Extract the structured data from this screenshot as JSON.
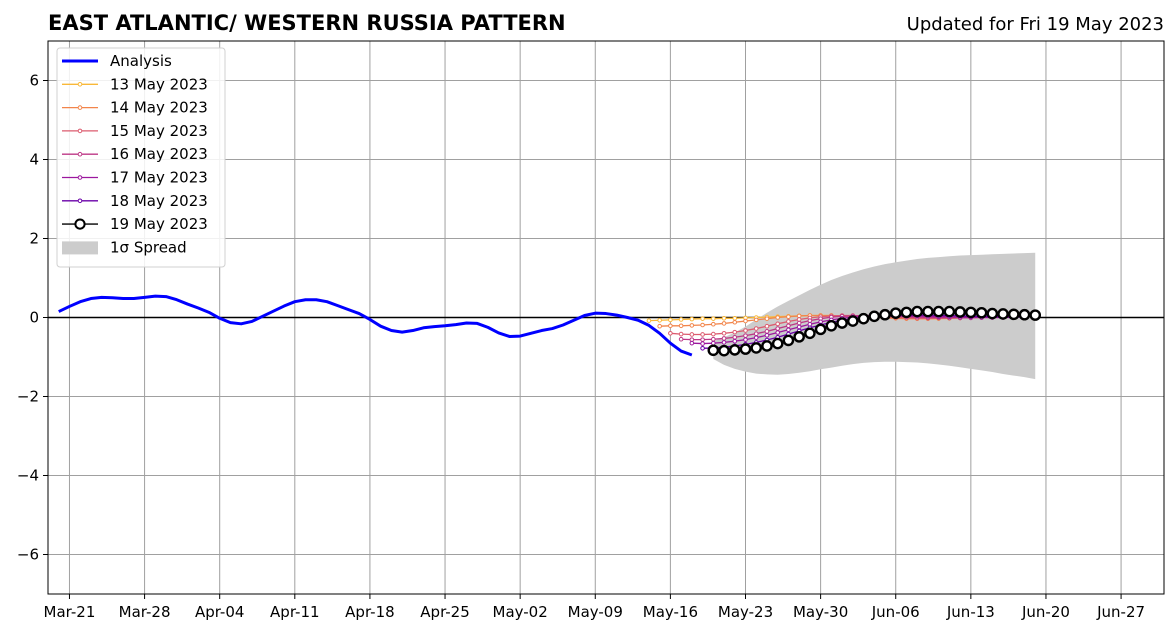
{
  "chart_data": {
    "type": "line",
    "title": "EAST ATLANTIC/ WESTERN RUSSIA PATTERN",
    "subtitle": "Updated for Fri 19 May 2023",
    "xlabel": "",
    "ylabel": "",
    "xlim": [
      "2023-03-19",
      "2023-07-01"
    ],
    "ylim": [
      -7,
      7
    ],
    "grid": true,
    "legend_position": "top-left",
    "x_ticks": [
      {
        "date": "2023-03-21",
        "label": "Mar-21"
      },
      {
        "date": "2023-03-28",
        "label": "Mar-28"
      },
      {
        "date": "2023-04-04",
        "label": "Apr-04"
      },
      {
        "date": "2023-04-11",
        "label": "Apr-11"
      },
      {
        "date": "2023-04-18",
        "label": "Apr-18"
      },
      {
        "date": "2023-04-25",
        "label": "Apr-25"
      },
      {
        "date": "2023-05-02",
        "label": "May-02"
      },
      {
        "date": "2023-05-09",
        "label": "May-09"
      },
      {
        "date": "2023-05-16",
        "label": "May-16"
      },
      {
        "date": "2023-05-23",
        "label": "May-23"
      },
      {
        "date": "2023-05-30",
        "label": "May-30"
      },
      {
        "date": "2023-06-06",
        "label": "Jun-06"
      },
      {
        "date": "2023-06-13",
        "label": "Jun-13"
      },
      {
        "date": "2023-06-20",
        "label": "Jun-20"
      },
      {
        "date": "2023-06-27",
        "label": "Jun-27"
      }
    ],
    "y_ticks": [
      {
        "value": 6,
        "label": "6"
      },
      {
        "value": 4,
        "label": "4"
      },
      {
        "value": 2,
        "label": "2"
      },
      {
        "value": 0,
        "label": "0"
      },
      {
        "value": -2,
        "label": "−2"
      },
      {
        "value": -4,
        "label": "−4"
      },
      {
        "value": -6,
        "label": "−6"
      }
    ],
    "series": [
      {
        "name": "Analysis",
        "color": "#0000ff",
        "style": "thick-line",
        "x": [
          "2023-03-20",
          "2023-03-21",
          "2023-03-22",
          "2023-03-23",
          "2023-03-24",
          "2023-03-25",
          "2023-03-26",
          "2023-03-27",
          "2023-03-28",
          "2023-03-29",
          "2023-03-30",
          "2023-03-31",
          "2023-04-01",
          "2023-04-02",
          "2023-04-03",
          "2023-04-04",
          "2023-04-05",
          "2023-04-06",
          "2023-04-07",
          "2023-04-08",
          "2023-04-09",
          "2023-04-10",
          "2023-04-11",
          "2023-04-12",
          "2023-04-13",
          "2023-04-14",
          "2023-04-15",
          "2023-04-16",
          "2023-04-17",
          "2023-04-18",
          "2023-04-19",
          "2023-04-20",
          "2023-04-21",
          "2023-04-22",
          "2023-04-23",
          "2023-04-24",
          "2023-04-25",
          "2023-04-26",
          "2023-04-27",
          "2023-04-28",
          "2023-04-29",
          "2023-04-30",
          "2023-05-01",
          "2023-05-02",
          "2023-05-03",
          "2023-05-04",
          "2023-05-05",
          "2023-05-06",
          "2023-05-07",
          "2023-05-08",
          "2023-05-09",
          "2023-05-10",
          "2023-05-11",
          "2023-05-12",
          "2023-05-13",
          "2023-05-14",
          "2023-05-15",
          "2023-05-16",
          "2023-05-17",
          "2023-05-18"
        ],
        "values": [
          0.15,
          0.28,
          0.4,
          0.48,
          0.51,
          0.5,
          0.48,
          0.48,
          0.51,
          0.54,
          0.53,
          0.45,
          0.34,
          0.24,
          0.13,
          -0.02,
          -0.13,
          -0.16,
          -0.1,
          0.03,
          0.16,
          0.29,
          0.4,
          0.45,
          0.45,
          0.4,
          0.3,
          0.2,
          0.1,
          -0.05,
          -0.22,
          -0.33,
          -0.37,
          -0.33,
          -0.26,
          -0.23,
          -0.21,
          -0.18,
          -0.14,
          -0.15,
          -0.25,
          -0.39,
          -0.48,
          -0.47,
          -0.4,
          -0.33,
          -0.28,
          -0.19,
          -0.07,
          0.05,
          0.11,
          0.1,
          0.06,
          0.0,
          -0.07,
          -0.2,
          -0.4,
          -0.65,
          -0.85,
          -0.95
        ]
      },
      {
        "name": "13 May 2023",
        "color": "#f9b838",
        "style": "small-markers",
        "x": [
          "2023-05-14",
          "2023-05-15",
          "2023-05-16",
          "2023-05-17",
          "2023-05-18",
          "2023-05-19",
          "2023-05-20",
          "2023-05-21",
          "2023-05-22",
          "2023-05-23",
          "2023-05-24",
          "2023-05-25",
          "2023-05-26",
          "2023-05-27",
          "2023-05-28",
          "2023-05-29",
          "2023-05-30",
          "2023-05-31",
          "2023-06-01",
          "2023-06-02",
          "2023-06-03",
          "2023-06-04",
          "2023-06-05",
          "2023-06-06",
          "2023-06-07",
          "2023-06-08",
          "2023-06-09",
          "2023-06-10",
          "2023-06-11",
          "2023-06-12",
          "2023-06-13"
        ],
        "values": [
          -0.08,
          -0.07,
          -0.06,
          -0.05,
          -0.04,
          -0.03,
          -0.03,
          -0.02,
          -0.02,
          -0.01,
          0.0,
          0.01,
          0.02,
          0.03,
          0.04,
          0.05,
          0.05,
          0.05,
          0.04,
          0.03,
          0.02,
          0.01,
          0.0,
          -0.01,
          -0.02,
          -0.03,
          -0.03,
          -0.03,
          -0.02,
          -0.01,
          0.0
        ]
      },
      {
        "name": "14 May 2023",
        "color": "#f2854b",
        "style": "small-markers",
        "x": [
          "2023-05-15",
          "2023-05-16",
          "2023-05-17",
          "2023-05-18",
          "2023-05-19",
          "2023-05-20",
          "2023-05-21",
          "2023-05-22",
          "2023-05-23",
          "2023-05-24",
          "2023-05-25",
          "2023-05-26",
          "2023-05-27",
          "2023-05-28",
          "2023-05-29",
          "2023-05-30",
          "2023-05-31",
          "2023-06-01",
          "2023-06-02",
          "2023-06-03",
          "2023-06-04",
          "2023-06-05",
          "2023-06-06",
          "2023-06-07",
          "2023-06-08",
          "2023-06-09",
          "2023-06-10",
          "2023-06-11",
          "2023-06-12",
          "2023-06-13",
          "2023-06-14"
        ],
        "values": [
          -0.22,
          -0.21,
          -0.21,
          -0.2,
          -0.19,
          -0.17,
          -0.15,
          -0.12,
          -0.09,
          -0.06,
          -0.03,
          0.0,
          0.02,
          0.04,
          0.05,
          0.05,
          0.05,
          0.04,
          0.03,
          0.02,
          0.0,
          -0.01,
          -0.02,
          -0.03,
          -0.03,
          -0.03,
          -0.02,
          -0.02,
          -0.01,
          0.0,
          0.0
        ]
      },
      {
        "name": "15 May 2023",
        "color": "#dc5b6f",
        "style": "small-markers",
        "x": [
          "2023-05-16",
          "2023-05-17",
          "2023-05-18",
          "2023-05-19",
          "2023-05-20",
          "2023-05-21",
          "2023-05-22",
          "2023-05-23",
          "2023-05-24",
          "2023-05-25",
          "2023-05-26",
          "2023-05-27",
          "2023-05-28",
          "2023-05-29",
          "2023-05-30",
          "2023-05-31",
          "2023-06-01",
          "2023-06-02",
          "2023-06-03",
          "2023-06-04",
          "2023-06-05",
          "2023-06-06",
          "2023-06-07",
          "2023-06-08",
          "2023-06-09",
          "2023-06-10",
          "2023-06-11",
          "2023-06-12",
          "2023-06-13",
          "2023-06-14",
          "2023-06-15"
        ],
        "values": [
          -0.4,
          -0.42,
          -0.43,
          -0.43,
          -0.42,
          -0.4,
          -0.37,
          -0.33,
          -0.28,
          -0.22,
          -0.16,
          -0.1,
          -0.05,
          -0.01,
          0.02,
          0.04,
          0.05,
          0.05,
          0.04,
          0.03,
          0.02,
          0.0,
          -0.01,
          -0.02,
          -0.02,
          -0.02,
          -0.01,
          -0.01,
          0.0,
          0.0,
          0.0
        ]
      },
      {
        "name": "16 May 2023",
        "color": "#bd3786",
        "style": "small-markers",
        "x": [
          "2023-05-17",
          "2023-05-18",
          "2023-05-19",
          "2023-05-20",
          "2023-05-21",
          "2023-05-22",
          "2023-05-23",
          "2023-05-24",
          "2023-05-25",
          "2023-05-26",
          "2023-05-27",
          "2023-05-28",
          "2023-05-29",
          "2023-05-30",
          "2023-05-31",
          "2023-06-01",
          "2023-06-02",
          "2023-06-03",
          "2023-06-04",
          "2023-06-05",
          "2023-06-06",
          "2023-06-07",
          "2023-06-08",
          "2023-06-09",
          "2023-06-10",
          "2023-06-11",
          "2023-06-12",
          "2023-06-13",
          "2023-06-14",
          "2023-06-15",
          "2023-06-16"
        ],
        "values": [
          -0.55,
          -0.56,
          -0.56,
          -0.55,
          -0.53,
          -0.5,
          -0.46,
          -0.41,
          -0.35,
          -0.28,
          -0.21,
          -0.14,
          -0.08,
          -0.03,
          0.01,
          0.03,
          0.04,
          0.05,
          0.05,
          0.04,
          0.03,
          0.02,
          0.01,
          0.0,
          0.0,
          -0.01,
          -0.01,
          -0.01,
          0.0,
          0.0,
          0.0
        ]
      },
      {
        "name": "17 May 2023",
        "color": "#9c179e",
        "style": "small-markers",
        "x": [
          "2023-05-18",
          "2023-05-19",
          "2023-05-20",
          "2023-05-21",
          "2023-05-22",
          "2023-05-23",
          "2023-05-24",
          "2023-05-25",
          "2023-05-26",
          "2023-05-27",
          "2023-05-28",
          "2023-05-29",
          "2023-05-30",
          "2023-05-31",
          "2023-06-01",
          "2023-06-02",
          "2023-06-03",
          "2023-06-04",
          "2023-06-05",
          "2023-06-06",
          "2023-06-07",
          "2023-06-08",
          "2023-06-09",
          "2023-06-10",
          "2023-06-11",
          "2023-06-12",
          "2023-06-13",
          "2023-06-14",
          "2023-06-15",
          "2023-06-16",
          "2023-06-17"
        ],
        "values": [
          -0.65,
          -0.66,
          -0.65,
          -0.63,
          -0.6,
          -0.56,
          -0.51,
          -0.45,
          -0.38,
          -0.31,
          -0.24,
          -0.17,
          -0.11,
          -0.06,
          -0.02,
          0.01,
          0.03,
          0.04,
          0.05,
          0.05,
          0.04,
          0.04,
          0.03,
          0.02,
          0.02,
          0.01,
          0.01,
          0.0,
          0.0,
          0.0,
          0.0
        ]
      },
      {
        "name": "18 May 2023",
        "color": "#6a00a8",
        "style": "small-markers",
        "x": [
          "2023-05-19",
          "2023-05-20",
          "2023-05-21",
          "2023-05-22",
          "2023-05-23",
          "2023-05-24",
          "2023-05-25",
          "2023-05-26",
          "2023-05-27",
          "2023-05-28",
          "2023-05-29",
          "2023-05-30",
          "2023-05-31",
          "2023-06-01",
          "2023-06-02",
          "2023-06-03",
          "2023-06-04",
          "2023-06-05",
          "2023-06-06",
          "2023-06-07",
          "2023-06-08",
          "2023-06-09",
          "2023-06-10",
          "2023-06-11",
          "2023-06-12",
          "2023-06-13",
          "2023-06-14",
          "2023-06-15",
          "2023-06-16",
          "2023-06-17",
          "2023-06-18"
        ],
        "values": [
          -0.78,
          -0.77,
          -0.75,
          -0.72,
          -0.68,
          -0.63,
          -0.57,
          -0.5,
          -0.42,
          -0.34,
          -0.26,
          -0.19,
          -0.12,
          -0.07,
          -0.03,
          0.0,
          0.02,
          0.04,
          0.05,
          0.06,
          0.06,
          0.06,
          0.05,
          0.05,
          0.04,
          0.03,
          0.03,
          0.02,
          0.02,
          0.01,
          0.01
        ]
      },
      {
        "name": "19 May 2023",
        "color": "#000000",
        "style": "open-circles",
        "x": [
          "2023-05-20",
          "2023-05-21",
          "2023-05-22",
          "2023-05-23",
          "2023-05-24",
          "2023-05-25",
          "2023-05-26",
          "2023-05-27",
          "2023-05-28",
          "2023-05-29",
          "2023-05-30",
          "2023-05-31",
          "2023-06-01",
          "2023-06-02",
          "2023-06-03",
          "2023-06-04",
          "2023-06-05",
          "2023-06-06",
          "2023-06-07",
          "2023-06-08",
          "2023-06-09",
          "2023-06-10",
          "2023-06-11",
          "2023-06-12",
          "2023-06-13",
          "2023-06-14",
          "2023-06-15",
          "2023-06-16",
          "2023-06-17",
          "2023-06-18",
          "2023-06-19"
        ],
        "values": [
          -0.83,
          -0.84,
          -0.82,
          -0.8,
          -0.77,
          -0.72,
          -0.66,
          -0.58,
          -0.49,
          -0.4,
          -0.3,
          -0.21,
          -0.14,
          -0.09,
          -0.03,
          0.03,
          0.07,
          0.11,
          0.13,
          0.15,
          0.15,
          0.15,
          0.15,
          0.14,
          0.13,
          0.12,
          0.1,
          0.09,
          0.08,
          0.07,
          0.06
        ]
      }
    ],
    "spread": {
      "name": "1σ Spread",
      "color": "#cccccc",
      "x": [
        "2023-05-20",
        "2023-05-21",
        "2023-05-22",
        "2023-05-23",
        "2023-05-24",
        "2023-05-25",
        "2023-05-26",
        "2023-05-27",
        "2023-05-28",
        "2023-05-29",
        "2023-05-30",
        "2023-05-31",
        "2023-06-01",
        "2023-06-02",
        "2023-06-03",
        "2023-06-04",
        "2023-06-05",
        "2023-06-06",
        "2023-06-07",
        "2023-06-08",
        "2023-06-09",
        "2023-06-10",
        "2023-06-11",
        "2023-06-12",
        "2023-06-13",
        "2023-06-14",
        "2023-06-15",
        "2023-06-16",
        "2023-06-17",
        "2023-06-18",
        "2023-06-19"
      ],
      "upper": [
        -0.6,
        -0.5,
        -0.38,
        -0.23,
        -0.05,
        0.12,
        0.28,
        0.42,
        0.56,
        0.7,
        0.83,
        0.95,
        1.05,
        1.14,
        1.22,
        1.29,
        1.35,
        1.4,
        1.44,
        1.48,
        1.51,
        1.53,
        1.55,
        1.57,
        1.58,
        1.59,
        1.6,
        1.61,
        1.62,
        1.63,
        1.64
      ],
      "lower": [
        -1.05,
        -1.2,
        -1.3,
        -1.37,
        -1.42,
        -1.44,
        -1.45,
        -1.43,
        -1.4,
        -1.36,
        -1.31,
        -1.27,
        -1.22,
        -1.18,
        -1.15,
        -1.13,
        -1.12,
        -1.12,
        -1.13,
        -1.14,
        -1.16,
        -1.19,
        -1.22,
        -1.26,
        -1.3,
        -1.34,
        -1.38,
        -1.43,
        -1.47,
        -1.51,
        -1.56
      ]
    }
  }
}
